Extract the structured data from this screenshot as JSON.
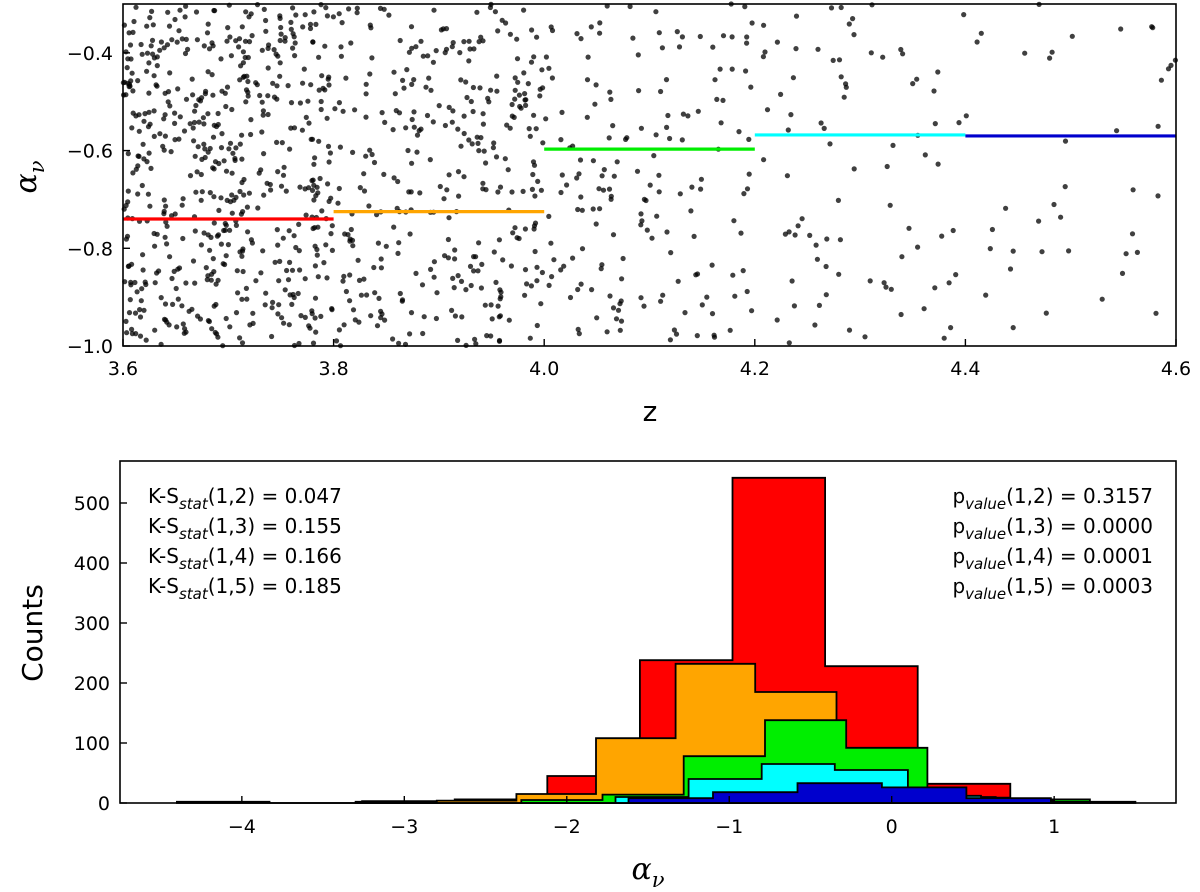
{
  "chart_data": [
    {
      "type": "scatter",
      "xlabel": "z",
      "ylabel_symbol": "α",
      "ylabel_sub": "ν",
      "xlim": [
        3.6,
        4.6
      ],
      "ylim": [
        -1.0,
        -0.3
      ],
      "xticks": [
        "3.6",
        "3.8",
        "4.0",
        "4.2",
        "4.4",
        "4.6"
      ],
      "yticks": [
        "−0.4",
        "−0.6",
        "−0.8",
        "−1.0"
      ],
      "ytick_values": [
        -0.4,
        -0.6,
        -0.8,
        -1.0
      ],
      "xtick_values": [
        3.6,
        3.8,
        4.0,
        4.2,
        4.4,
        4.6
      ],
      "point_color": "#000000",
      "point_density": [
        {
          "x_range": [
            3.6,
            3.8
          ],
          "count": 560
        },
        {
          "x_range": [
            3.8,
            4.0
          ],
          "count": 330
        },
        {
          "x_range": [
            4.0,
            4.2
          ],
          "count": 170
        },
        {
          "x_range": [
            4.2,
            4.4
          ],
          "count": 85
        },
        {
          "x_range": [
            4.4,
            4.6
          ],
          "count": 40
        }
      ],
      "medians": [
        {
          "x_range": [
            3.6,
            3.8
          ],
          "y": -0.74,
          "color": "#ff0000"
        },
        {
          "x_range": [
            3.8,
            4.0
          ],
          "y": -0.725,
          "color": "#ffa500"
        },
        {
          "x_range": [
            4.0,
            4.2
          ],
          "y": -0.597,
          "color": "#00ee00"
        },
        {
          "x_range": [
            4.2,
            4.4
          ],
          "y": -0.568,
          "color": "#00ffff"
        },
        {
          "x_range": [
            4.4,
            4.6
          ],
          "y": -0.57,
          "color": "#0000cd"
        }
      ]
    },
    {
      "type": "histogram",
      "xlabel_symbol": "α",
      "xlabel_sub": "ν",
      "ylabel": "Counts",
      "xlim": [
        -4.75,
        1.75
      ],
      "ylim": [
        0,
        570
      ],
      "xticks": [
        "−4",
        "−3",
        "−2",
        "−1",
        "0",
        "1"
      ],
      "xtick_values": [
        -4,
        -3,
        -2,
        -1,
        0,
        1
      ],
      "yticks": [
        "0",
        "100",
        "200",
        "300",
        "400",
        "500"
      ],
      "ytick_values": [
        0,
        100,
        200,
        300,
        400,
        500
      ],
      "series": [
        {
          "color": "#ff0000",
          "edges": [
            -4.4,
            -3.83,
            -3.26,
            -2.69,
            -2.12,
            -1.55,
            -0.98,
            -0.41,
            0.16,
            0.73
          ],
          "counts": [
            2,
            0,
            3,
            6,
            45,
            238,
            542,
            228,
            32
          ]
        },
        {
          "color": "#ffa500",
          "edges": [
            -3.3,
            -2.8,
            -2.31,
            -1.82,
            -1.33,
            -0.84,
            -0.34,
            0.15,
            0.64
          ],
          "counts": [
            2,
            4,
            15,
            108,
            232,
            185,
            58,
            10
          ]
        },
        {
          "color": "#00ee00",
          "edges": [
            -2.28,
            -1.78,
            -1.28,
            -0.78,
            -0.28,
            0.22,
            0.72,
            1.22
          ],
          "counts": [
            5,
            14,
            78,
            138,
            92,
            9,
            6
          ]
        },
        {
          "color": "#00ffff",
          "edges": [
            -1.7,
            -1.25,
            -0.8,
            -0.35,
            0.1,
            0.55,
            1.0
          ],
          "counts": [
            10,
            40,
            65,
            55,
            12,
            4
          ]
        },
        {
          "color": "#0000cd",
          "edges": [
            -1.62,
            -1.1,
            -0.58,
            -0.06,
            0.46,
            0.98,
            1.5
          ],
          "counts": [
            8,
            18,
            33,
            26,
            8,
            2
          ]
        }
      ],
      "annotations_left": [
        {
          "base": "K-S",
          "sub": "stat",
          "args": "(1,2) = 0.047"
        },
        {
          "base": "K-S",
          "sub": "stat",
          "args": "(1,3) = 0.155"
        },
        {
          "base": "K-S",
          "sub": "stat",
          "args": "(1,4) = 0.166"
        },
        {
          "base": "K-S",
          "sub": "stat",
          "args": "(1,5) = 0.185"
        }
      ],
      "annotations_right": [
        {
          "base": "p",
          "sub": "value",
          "args": "(1,2) = 0.3157"
        },
        {
          "base": "p",
          "sub": "value",
          "args": "(1,3) = 0.0000"
        },
        {
          "base": "p",
          "sub": "value",
          "args": "(1,4) = 0.0001"
        },
        {
          "base": "p",
          "sub": "value",
          "args": "(1,5) = 0.0003"
        }
      ]
    }
  ]
}
